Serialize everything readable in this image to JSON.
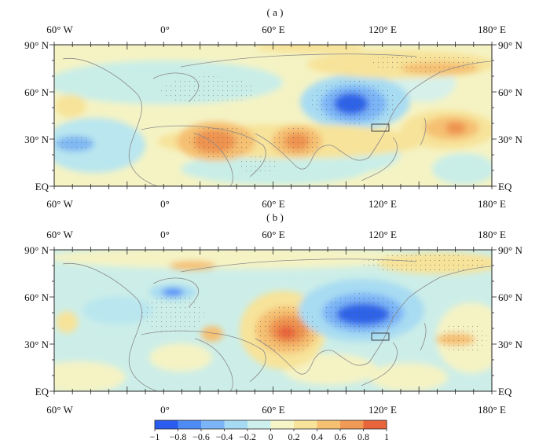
{
  "panels": [
    {
      "label": "( a )",
      "lon_labels": [
        "60° W",
        "0°",
        "60° E",
        "120° E",
        "180° E"
      ],
      "lat_labels": [
        "90° N",
        "60° N",
        "30° N",
        "EQ"
      ]
    },
    {
      "label": "( b )",
      "lon_labels": [
        "60° W",
        "0°",
        "60° E",
        "120° E",
        "180° E"
      ],
      "lat_labels": [
        "90° N",
        "60° N",
        "30° N",
        "EQ"
      ]
    }
  ],
  "colorbar": {
    "ticks": [
      "−1",
      "−0.8",
      "−0.6",
      "−0.4",
      "−0.2",
      "0",
      "0.2",
      "0.4",
      "0.6",
      "0.8",
      "1"
    ],
    "colors": [
      "#2b5cf0",
      "#4f8bf5",
      "#7cb5f7",
      "#a6daf2",
      "#cdf0ec",
      "#f5f5c8",
      "#f7e39a",
      "#f5c072",
      "#f09a55",
      "#e8643a"
    ]
  }
}
